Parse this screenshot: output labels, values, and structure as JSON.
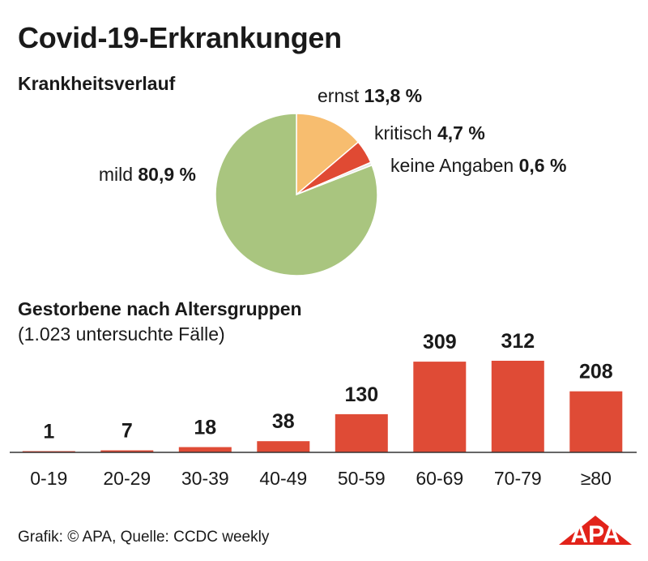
{
  "title": "Covid-19-Erkrankungen",
  "footer": {
    "source": "Grafik: © APA, Quelle: CCDC weekly",
    "logo_text": "APA",
    "logo_color": "#e2231a"
  },
  "chart_data": [
    {
      "type": "pie",
      "title": "Krankheitsverlauf",
      "start_angle_deg": 0,
      "direction": "clockwise",
      "slices": [
        {
          "label": "ernst",
          "value": 13.8,
          "value_text": "13,8 %",
          "color": "#f7bd6f"
        },
        {
          "label": "kritisch",
          "value": 4.7,
          "value_text": "4,7 %",
          "color": "#e04a33"
        },
        {
          "label": "keine Angaben",
          "value": 0.6,
          "value_text": "0,6 %",
          "color": "#e6e6e6"
        },
        {
          "label": "mild",
          "value": 80.9,
          "value_text": "80,9 %",
          "color": "#a9c57f"
        }
      ]
    },
    {
      "type": "bar",
      "title": "Gestorbene nach Altersgruppen",
      "subtitle": "(1.023 untersuchte Fälle)",
      "categories": [
        "0-19",
        "20-29",
        "30-39",
        "40-49",
        "50-59",
        "60-69",
        "70-79",
        "≥80"
      ],
      "values": [
        1,
        7,
        18,
        38,
        130,
        309,
        312,
        208
      ],
      "ylim": [
        0,
        312
      ],
      "color": "#df4b36",
      "grid": false
    }
  ]
}
